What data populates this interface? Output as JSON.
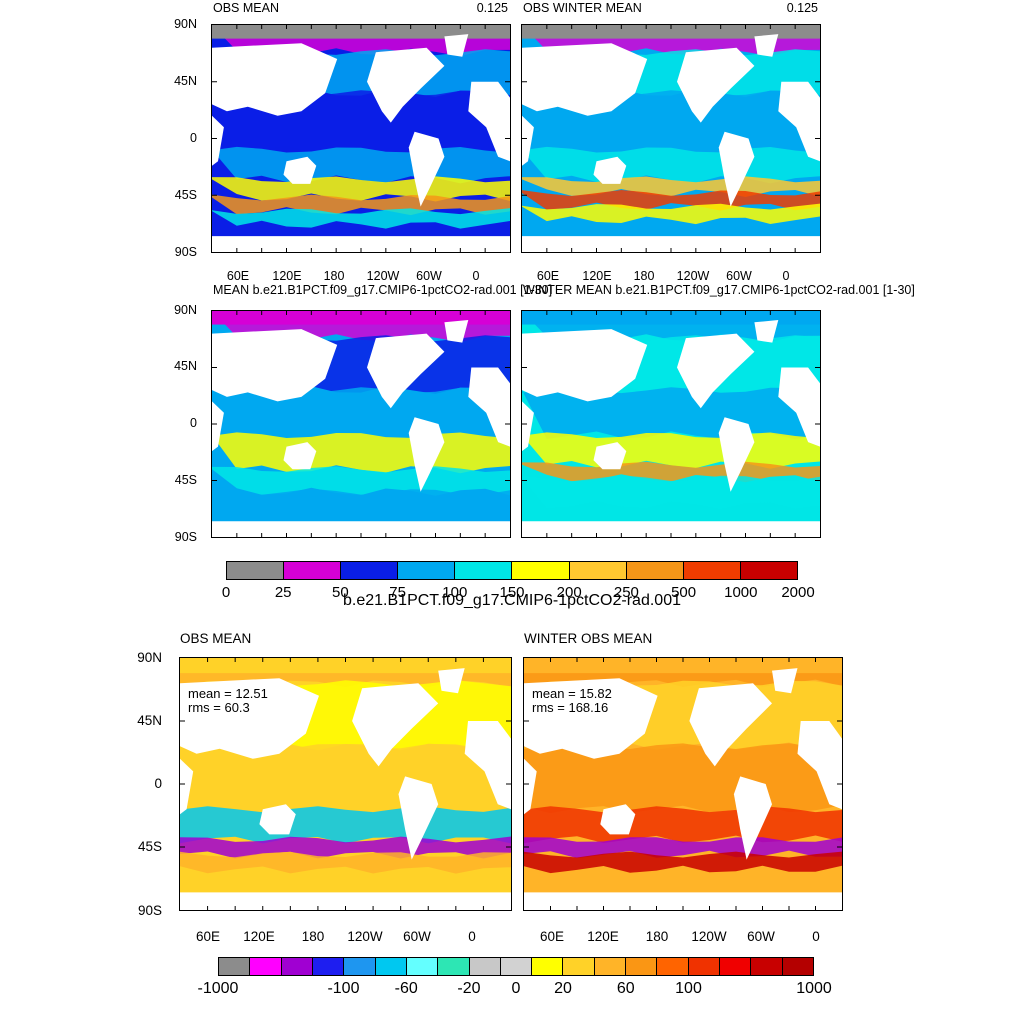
{
  "panels": [
    {
      "title": "OBS MEAN",
      "value": "0.125",
      "scheme": "a"
    },
    {
      "title": "OBS WINTER MEAN",
      "value": "0.125",
      "scheme": "b"
    },
    {
      "title": "MEAN b.e21.B1PCT.f09_g17.CMIP6-1pctCO2-rad.001 [1-30]",
      "value": "",
      "scheme": "c"
    },
    {
      "title": "WINTER MEAN b.e21.B1PCT.f09_g17.CMIP6-1pctCO2-rad.001 [1-30]",
      "value": "",
      "scheme": "d"
    },
    {
      "title": "OBS MEAN",
      "value": "",
      "scheme": "e",
      "mean": "mean = 12.51",
      "rms": "rms = 60.3"
    },
    {
      "title": "WINTER OBS MEAN",
      "value": "",
      "scheme": "f",
      "mean": "mean = 15.82",
      "rms": "rms = 168.16"
    }
  ],
  "lat_labels": [
    "90N",
    "45N",
    "0",
    "45S",
    "90S"
  ],
  "lon_labels": [
    "60E",
    "120E",
    "180",
    "120W",
    "60W",
    "0"
  ],
  "colorbar1": {
    "caption": "b.e21.B1PCT.f09_g17.CMIP6-1pctCO2-rad.001",
    "colors": [
      "#8c8c8c",
      "#d600d6",
      "#0a1ee6",
      "#00a8f0",
      "#00e6e6",
      "#ffff00",
      "#ffc830",
      "#f59618",
      "#f03c00",
      "#c80000"
    ],
    "labels": [
      "0",
      "25",
      "50",
      "75",
      "100",
      "150",
      "200",
      "250",
      "500",
      "1000",
      "2000"
    ]
  },
  "colorbar2": {
    "colors": [
      "#8c8c8c",
      "#ff00ff",
      "#a000d2",
      "#1e1ef0",
      "#1e96f0",
      "#00c8f0",
      "#64ffff",
      "#2de6b4",
      "#c8c8c8",
      "#d2d2d2",
      "#ffff00",
      "#ffd228",
      "#ffb428",
      "#fa9614",
      "#ff6400",
      "#f03200",
      "#f00000",
      "#c80000",
      "#b40000"
    ],
    "labels": [
      "-1000",
      "-100",
      "-60",
      "-20",
      "0",
      "20",
      "60",
      "100",
      "1000"
    ]
  }
}
